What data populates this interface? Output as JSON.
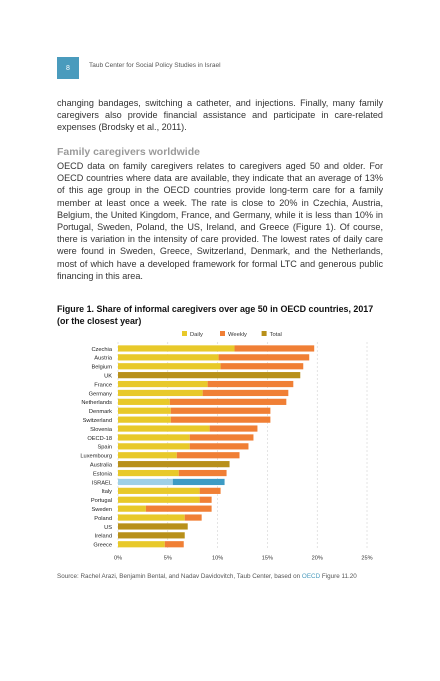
{
  "header": {
    "page_number": "8",
    "title": "Taub Center for Social Policy Studies in Israel"
  },
  "paragraph1": "changing bandages, switching a catheter, and injections. Finally, many family caregivers also provide financial assistance and participate in care-related expenses (Brodsky et al., 2011).",
  "section_heading": "Family caregivers worldwide",
  "paragraph2": "OECD data on family caregivers relates to caregivers aged 50 and older. For OECD countries where data are available, they indicate that an average of 13% of this age group in the OECD countries provide long-term care for a family member at least once a week. The rate is close to 20% in Czechia, Austria, Belgium, the United Kingdom, France, and Germany, while it is less than 10% in Portugal, Sweden, Poland, the US, Ireland, and Greece (Figure 1). Of course, there is variation in the intensity of care provided. The lowest rates of daily care were found in Sweden, Greece, Switzerland, Denmark, and the Netherlands, most of which have a developed framework for formal LTC and generous public financing in this area.",
  "figure_caption": "Figure 1. Share of informal caregivers over age 50 in OECD countries, 2017 (or the closest year)",
  "source": {
    "prefix": "Source: Rachel Arazi, Benjamin Bental, and Nadav Davidovitch, Taub Center, based on ",
    "link": "OECD",
    "suffix": " Figure 11.20"
  },
  "chart_data": {
    "type": "bar",
    "orientation": "horizontal",
    "stacked": true,
    "categories": [
      "Czechia",
      "Austria",
      "Belgium",
      "UK",
      "France",
      "Germany",
      "Netherlands",
      "Denmark",
      "Switzerland",
      "Slovenia",
      "OECD-18",
      "Spain",
      "Luxembourg",
      "Australia",
      "Estonia",
      "ISRAEL",
      "Italy",
      "Portugal",
      "Sweden",
      "Poland",
      "US",
      "Ireland",
      "Greece"
    ],
    "series": [
      {
        "name": "Daily",
        "color": "#e8c92a",
        "values": [
          11.7,
          10.1,
          10.3,
          null,
          9.0,
          8.5,
          5.2,
          5.3,
          5.3,
          9.2,
          7.2,
          7.2,
          5.9,
          null,
          6.1,
          5.5,
          8.2,
          8.2,
          2.8,
          6.7,
          null,
          null,
          4.7
        ]
      },
      {
        "name": "Weekly",
        "color": "#f07f35",
        "values": [
          8.0,
          9.1,
          8.3,
          null,
          8.6,
          8.6,
          11.7,
          10.0,
          10.0,
          4.8,
          6.4,
          5.9,
          6.3,
          null,
          4.8,
          null,
          2.1,
          1.2,
          6.6,
          1.7,
          null,
          null,
          1.9
        ]
      },
      {
        "name": "Total",
        "color": "#b8901a",
        "values": [
          null,
          null,
          null,
          18.3,
          null,
          null,
          null,
          null,
          null,
          null,
          null,
          null,
          null,
          11.2,
          null,
          null,
          null,
          null,
          null,
          null,
          7.0,
          6.7,
          null
        ]
      },
      {
        "name": "",
        "color": "#9fd0e6",
        "values": [
          null,
          null,
          null,
          null,
          null,
          null,
          null,
          null,
          null,
          null,
          null,
          null,
          null,
          null,
          null,
          5.5,
          null,
          null,
          null,
          null,
          null,
          null,
          null
        ]
      },
      {
        "name": "",
        "color": "#3d9bc4",
        "values": [
          null,
          null,
          null,
          null,
          null,
          null,
          null,
          null,
          null,
          null,
          null,
          null,
          null,
          null,
          null,
          5.2,
          null,
          null,
          null,
          null,
          null,
          null,
          null
        ]
      }
    ],
    "legend": [
      "Daily",
      "Weekly",
      "Total"
    ],
    "legend_position": "top",
    "x_ticks": [
      "0%",
      "5%",
      "10%",
      "15%",
      "20%",
      "25%"
    ],
    "xlim": [
      0,
      25
    ],
    "grid": "vertical dashed"
  }
}
